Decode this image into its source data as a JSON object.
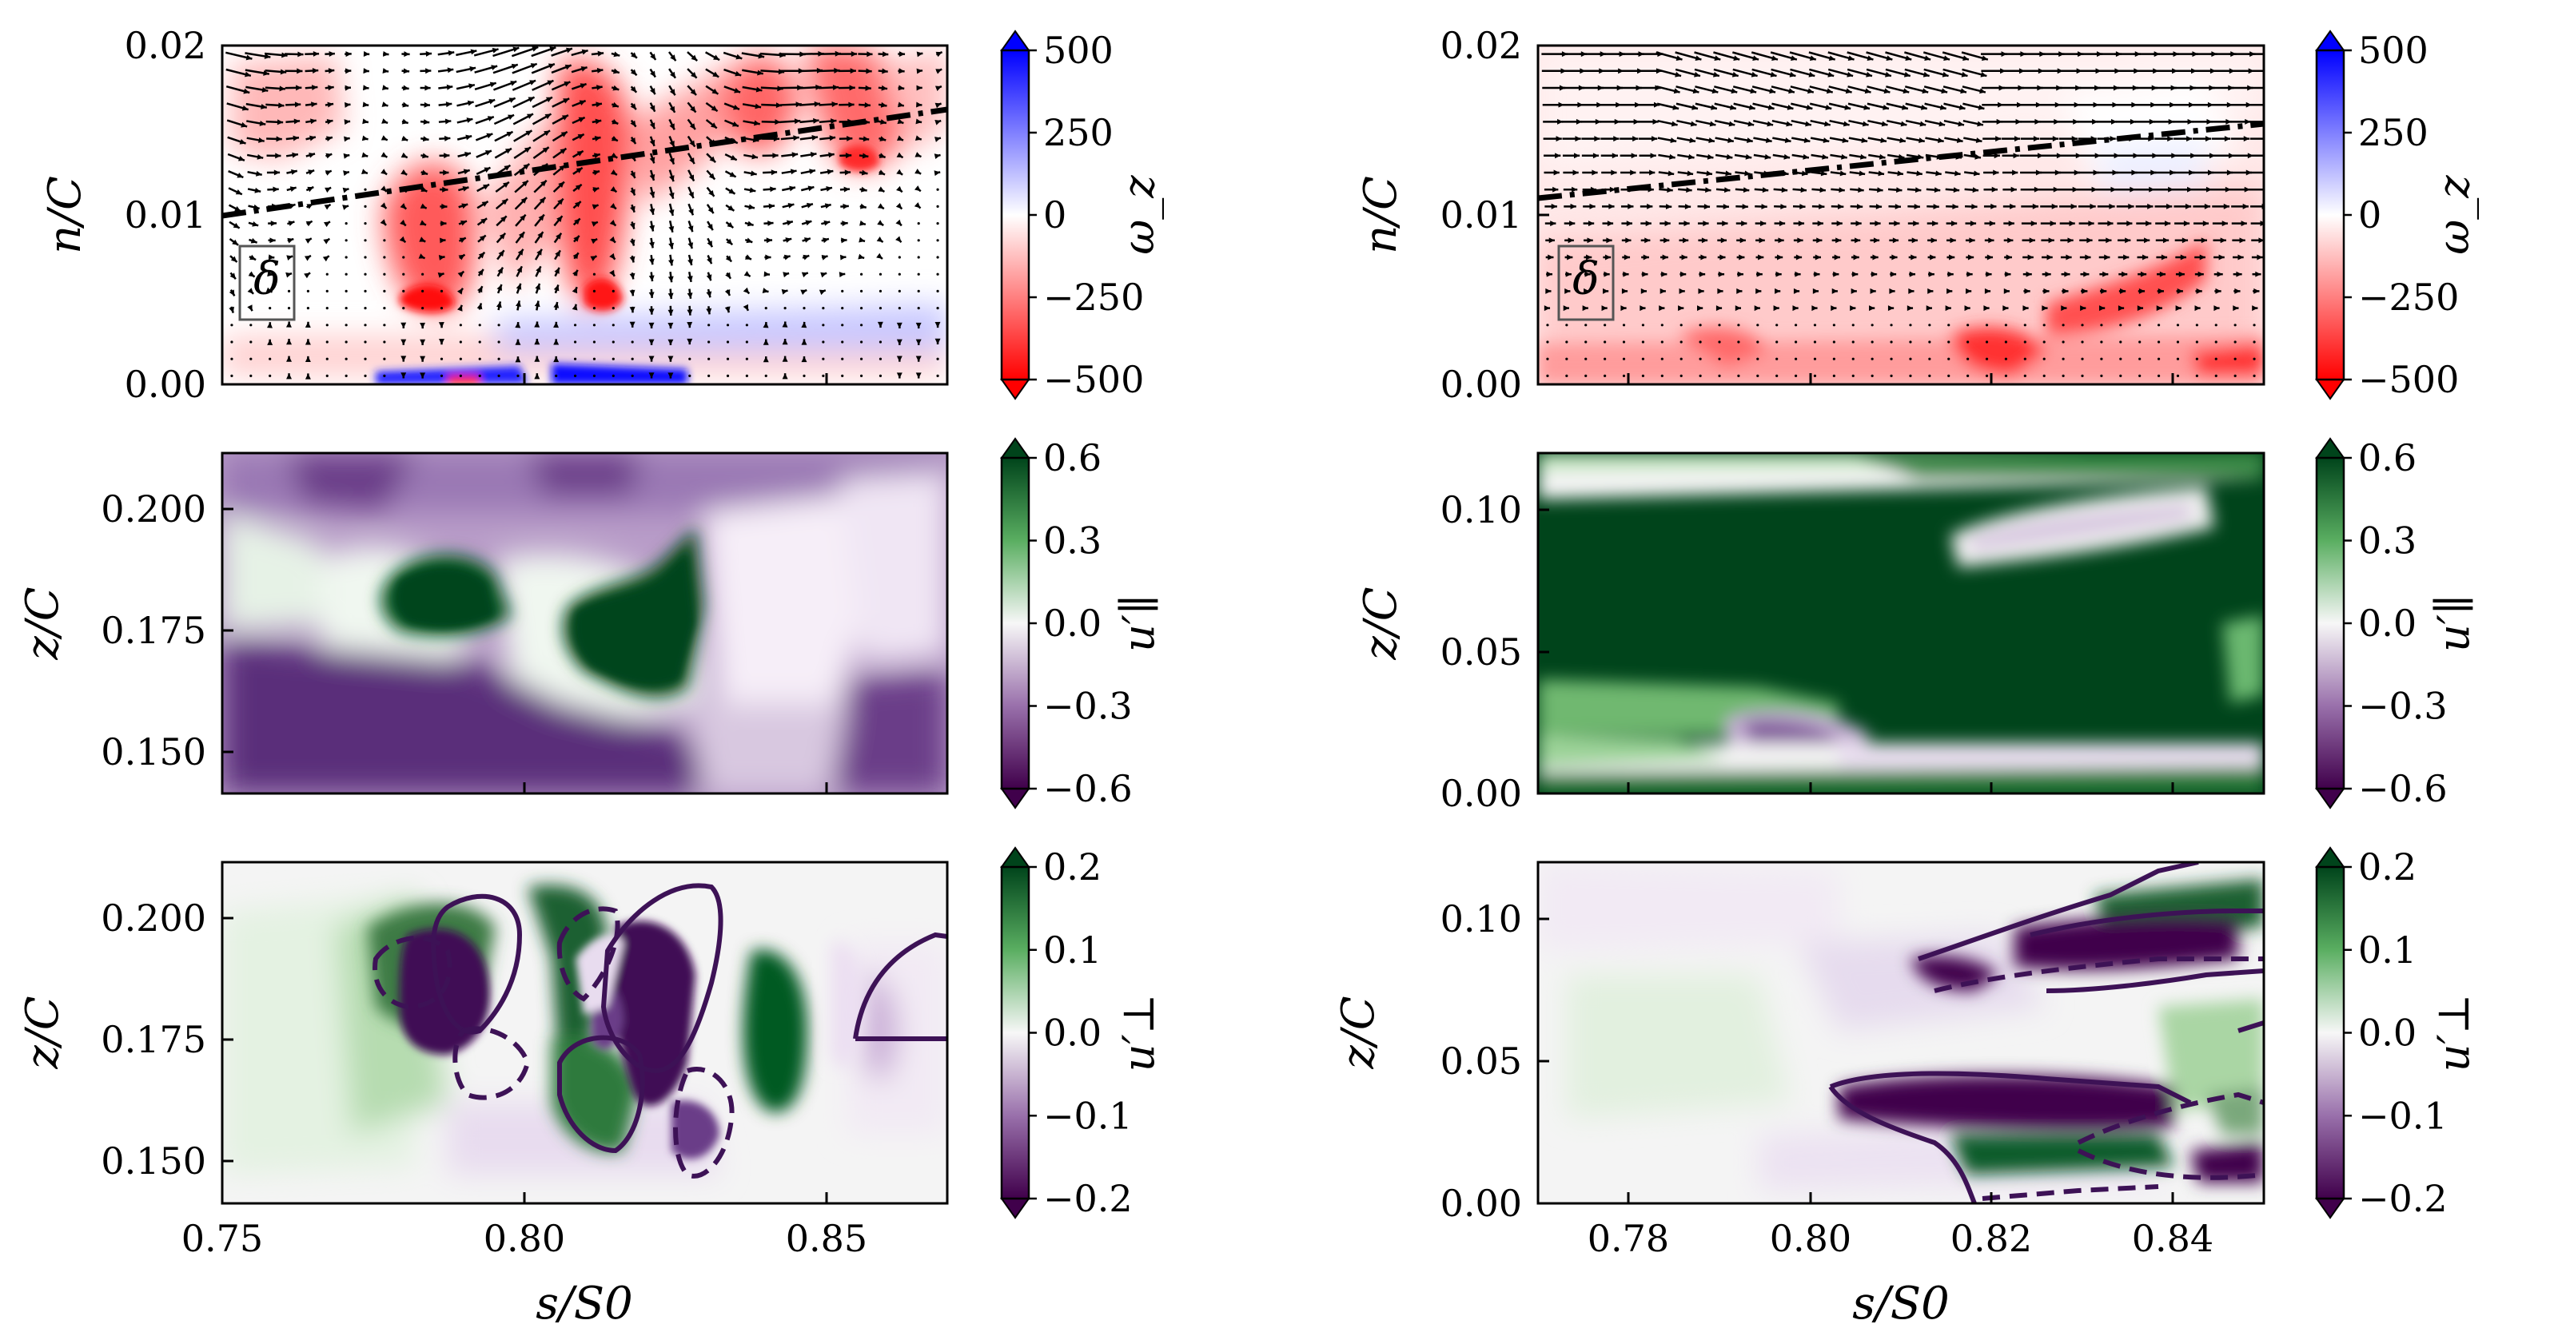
{
  "figure": {
    "xlabel": "s/S0",
    "xlabel_sub": "0"
  },
  "chart_data": [
    {
      "id": "left-top",
      "type": "heatmap",
      "field": "vorticity",
      "xlim": [
        0.75,
        0.87
      ],
      "ylim": [
        0.0,
        0.02
      ],
      "yticks": [
        "0.00",
        "0.01",
        "0.02"
      ],
      "xticks": [
        0.75,
        0.8,
        0.85
      ],
      "ylabel": "n/C",
      "inset_label": "δ",
      "colorbar": {
        "label": "ω_z",
        "ticks": [
          "500",
          "250",
          "0",
          "−250",
          "−500"
        ],
        "cmap": "bwr"
      },
      "boundary_layer_line": [
        [
          0.75,
          0.01
        ],
        [
          0.87,
          0.016
        ]
      ]
    },
    {
      "id": "left-mid",
      "type": "heatmap",
      "field": "u_parallel",
      "xlim": [
        0.75,
        0.87
      ],
      "ylim": [
        0.14,
        0.21
      ],
      "yticks": [
        "0.200",
        "0.175",
        "0.150"
      ],
      "xticks": [
        0.75,
        0.8,
        0.85
      ],
      "ylabel": "z/C",
      "colorbar": {
        "label": "u′∥",
        "ticks": [
          "0.6",
          "0.3",
          "0.0",
          "−0.3",
          "−0.6"
        ],
        "cmap": "PRGn"
      }
    },
    {
      "id": "left-bot",
      "type": "heatmap",
      "field": "u_perp",
      "xlim": [
        0.75,
        0.87
      ],
      "ylim": [
        0.14,
        0.21
      ],
      "yticks": [
        "0.200",
        "0.175",
        "0.150"
      ],
      "xticks": [
        "0.75",
        "0.80",
        "0.85"
      ],
      "ylabel": "z/C",
      "colorbar": {
        "label": "u′⊥",
        "ticks": [
          "0.2",
          "0.1",
          "0.0",
          "−0.1",
          "−0.2"
        ],
        "cmap": "PRGn"
      }
    },
    {
      "id": "right-top",
      "type": "heatmap",
      "field": "vorticity",
      "xlim": [
        0.77,
        0.85
      ],
      "ylim": [
        0.0,
        0.02
      ],
      "yticks": [
        "0.00",
        "0.01",
        "0.02"
      ],
      "xticks": [
        0.78,
        0.8,
        0.82,
        0.84
      ],
      "ylabel": "n/C",
      "inset_label": "δ",
      "colorbar": {
        "label": "ω_z",
        "ticks": [
          "500",
          "250",
          "0",
          "−250",
          "−500"
        ],
        "cmap": "bwr"
      },
      "boundary_layer_line": [
        [
          0.77,
          0.011
        ],
        [
          0.85,
          0.015
        ]
      ]
    },
    {
      "id": "right-mid",
      "type": "heatmap",
      "field": "u_parallel",
      "xlim": [
        0.77,
        0.85
      ],
      "ylim": [
        0.0,
        0.12
      ],
      "yticks": [
        "0.10",
        "0.05",
        "0.00"
      ],
      "xticks": [
        0.78,
        0.8,
        0.82,
        0.84
      ],
      "ylabel": "z/C",
      "colorbar": {
        "label": "u′∥",
        "ticks": [
          "0.6",
          "0.3",
          "0.0",
          "−0.3",
          "−0.6"
        ],
        "cmap": "PRGn"
      }
    },
    {
      "id": "right-bot",
      "type": "heatmap",
      "field": "u_perp",
      "xlim": [
        0.77,
        0.85
      ],
      "ylim": [
        0.0,
        0.12
      ],
      "yticks": [
        "0.10",
        "0.05",
        "0.00"
      ],
      "xticks": [
        "0.78",
        "0.80",
        "0.82",
        "0.84"
      ],
      "ylabel": "z/C",
      "colorbar": {
        "label": "u′⊥",
        "ticks": [
          "0.2",
          "0.1",
          "0.0",
          "−0.1",
          "−0.2"
        ],
        "cmap": "PRGn"
      }
    }
  ]
}
